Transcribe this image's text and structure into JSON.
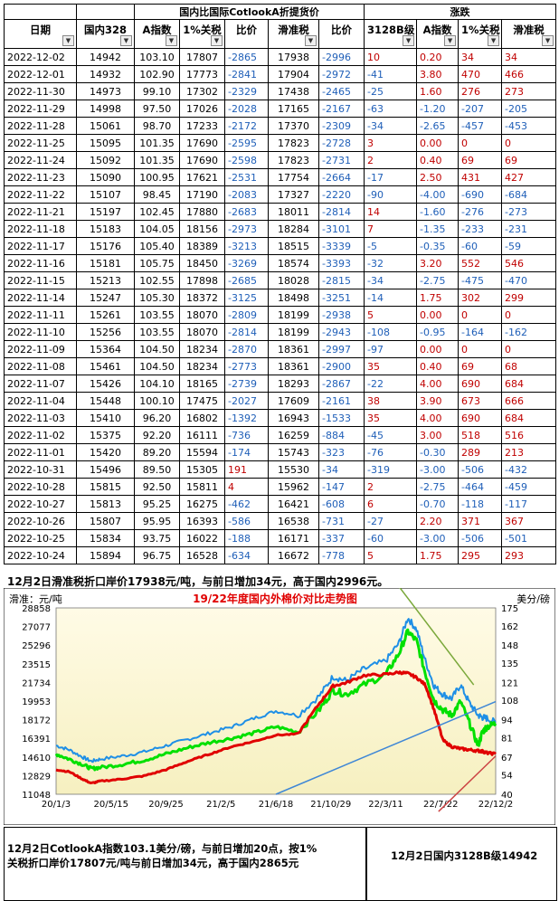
{
  "table": {
    "group_headers": {
      "domestic_vs_intl": "国内比国际CotlookA折提货价",
      "change": "涨跌"
    },
    "columns": [
      "日期",
      "国内328",
      "A指数",
      "1%关税",
      "比价",
      "滑准税",
      "比价",
      "3128B级",
      "A指数",
      "1%关税",
      "滑准税"
    ],
    "rows": [
      [
        "2022-12-02",
        "14942",
        "103.10",
        "17807",
        "-2865",
        "17938",
        "-2996",
        "10",
        "0.20",
        "34",
        "34"
      ],
      [
        "2022-12-01",
        "14932",
        "102.90",
        "17773",
        "-2841",
        "17904",
        "-2972",
        "-41",
        "3.80",
        "470",
        "466"
      ],
      [
        "2022-11-30",
        "14973",
        "99.10",
        "17302",
        "-2329",
        "17438",
        "-2465",
        "-25",
        "1.60",
        "276",
        "273"
      ],
      [
        "2022-11-29",
        "14998",
        "97.50",
        "17026",
        "-2028",
        "17165",
        "-2167",
        "-63",
        "-1.20",
        "-207",
        "-205"
      ],
      [
        "2022-11-28",
        "15061",
        "98.70",
        "17233",
        "-2172",
        "17370",
        "-2309",
        "-34",
        "-2.65",
        "-457",
        "-453"
      ],
      [
        "2022-11-25",
        "15095",
        "101.35",
        "17690",
        "-2595",
        "17823",
        "-2728",
        "3",
        "0.00",
        "0",
        "0"
      ],
      [
        "2022-11-24",
        "15092",
        "101.35",
        "17690",
        "-2598",
        "17823",
        "-2731",
        "2",
        "0.40",
        "69",
        "69"
      ],
      [
        "2022-11-23",
        "15090",
        "100.95",
        "17621",
        "-2531",
        "17754",
        "-2664",
        "-17",
        "2.50",
        "431",
        "427"
      ],
      [
        "2022-11-22",
        "15107",
        "98.45",
        "17190",
        "-2083",
        "17327",
        "-2220",
        "-90",
        "-4.00",
        "-690",
        "-684"
      ],
      [
        "2022-11-21",
        "15197",
        "102.45",
        "17880",
        "-2683",
        "18011",
        "-2814",
        "14",
        "-1.60",
        "-276",
        "-273"
      ],
      [
        "2022-11-18",
        "15183",
        "104.05",
        "18156",
        "-2973",
        "18284",
        "-3101",
        "7",
        "-1.35",
        "-233",
        "-231"
      ],
      [
        "2022-11-17",
        "15176",
        "105.40",
        "18389",
        "-3213",
        "18515",
        "-3339",
        "-5",
        "-0.35",
        "-60",
        "-59"
      ],
      [
        "2022-11-16",
        "15181",
        "105.75",
        "18450",
        "-3269",
        "18574",
        "-3393",
        "-32",
        "3.20",
        "552",
        "546"
      ],
      [
        "2022-11-15",
        "15213",
        "102.55",
        "17898",
        "-2685",
        "18028",
        "-2815",
        "-34",
        "-2.75",
        "-475",
        "-470"
      ],
      [
        "2022-11-14",
        "15247",
        "105.30",
        "18372",
        "-3125",
        "18498",
        "-3251",
        "-14",
        "1.75",
        "302",
        "299"
      ],
      [
        "2022-11-11",
        "15261",
        "103.55",
        "18070",
        "-2809",
        "18199",
        "-2938",
        "5",
        "0.00",
        "0",
        "0"
      ],
      [
        "2022-11-10",
        "15256",
        "103.55",
        "18070",
        "-2814",
        "18199",
        "-2943",
        "-108",
        "-0.95",
        "-164",
        "-162"
      ],
      [
        "2022-11-09",
        "15364",
        "104.50",
        "18234",
        "-2870",
        "18361",
        "-2997",
        "-97",
        "0.00",
        "0",
        "0"
      ],
      [
        "2022-11-08",
        "15461",
        "104.50",
        "18234",
        "-2773",
        "18361",
        "-2900",
        "35",
        "0.40",
        "69",
        "68"
      ],
      [
        "2022-11-07",
        "15426",
        "104.10",
        "18165",
        "-2739",
        "18293",
        "-2867",
        "-22",
        "4.00",
        "690",
        "684"
      ],
      [
        "2022-11-04",
        "15448",
        "100.10",
        "17475",
        "-2027",
        "17609",
        "-2161",
        "38",
        "3.90",
        "673",
        "666"
      ],
      [
        "2022-11-03",
        "15410",
        "96.20",
        "16802",
        "-1392",
        "16943",
        "-1533",
        "35",
        "4.00",
        "690",
        "684"
      ],
      [
        "2022-11-02",
        "15375",
        "92.20",
        "16111",
        "-736",
        "16259",
        "-884",
        "-45",
        "3.00",
        "518",
        "516"
      ],
      [
        "2022-11-01",
        "15420",
        "89.20",
        "15594",
        "-174",
        "15743",
        "-323",
        "-76",
        "-0.30",
        "289",
        "213"
      ],
      [
        "2022-10-31",
        "15496",
        "89.50",
        "15305",
        "191",
        "15530",
        "-34",
        "-319",
        "-3.00",
        "-506",
        "-432"
      ],
      [
        "2022-10-28",
        "15815",
        "92.50",
        "15811",
        "4",
        "15962",
        "-147",
        "2",
        "-2.75",
        "-464",
        "-459"
      ],
      [
        "2022-10-27",
        "15813",
        "95.25",
        "16275",
        "-462",
        "16421",
        "-608",
        "6",
        "-0.70",
        "-118",
        "-117"
      ],
      [
        "2022-10-26",
        "15807",
        "95.95",
        "16393",
        "-586",
        "16538",
        "-731",
        "-27",
        "2.20",
        "371",
        "367"
      ],
      [
        "2022-10-25",
        "15834",
        "93.75",
        "16022",
        "-188",
        "16171",
        "-337",
        "-60",
        "-3.00",
        "-506",
        "-501"
      ],
      [
        "2022-10-24",
        "15894",
        "96.75",
        "16528",
        "-634",
        "16672",
        "-778",
        "5",
        "1.75",
        "295",
        "293"
      ]
    ]
  },
  "notes": {
    "top": "12月2日滑准税折口岸价17938元/吨，与前日增加34元，高于国内2996元。",
    "bottom_left": "12月2日CotlookA指数103.1美分/磅，与前日增加20点，按1%关税折口岸价17807元/吨与前日增加34元，高于国内2865元",
    "bottom_right": "12月2日国内3128B级14942"
  },
  "chart_data": {
    "type": "line",
    "title": "19/22年度国内外棉价对比走势图",
    "ylabel_left": "滑准：元/吨",
    "ylabel_right": "美分/磅",
    "x_ticks": [
      "20/1/3",
      "20/5/15",
      "20/9/25",
      "21/2/5",
      "21/6/18",
      "21/10/29",
      "22/3/11",
      "22/7/22",
      "22/12/2"
    ],
    "y_left_ticks": [
      11048,
      12829,
      14610,
      16391,
      18172,
      19953,
      21734,
      23515,
      25296,
      27077,
      28858
    ],
    "y_right_ticks": [
      40,
      54,
      67,
      81,
      94,
      108,
      121,
      135,
      148,
      162,
      175
    ],
    "ylim_left": [
      11048,
      28858
    ],
    "ylim_right": [
      40,
      175
    ],
    "series": [
      {
        "color": "#1e8fe6",
        "axis": "left",
        "x": [
          0,
          0.03,
          0.06,
          0.08,
          0.1,
          0.15,
          0.2,
          0.25,
          0.3,
          0.35,
          0.4,
          0.45,
          0.5,
          0.55,
          0.6,
          0.63,
          0.66,
          0.7,
          0.75,
          0.78,
          0.8,
          0.82,
          0.84,
          0.86,
          0.88,
          0.9,
          0.92,
          0.94,
          0.96,
          0.97,
          0.98,
          1
        ],
        "y": [
          15700,
          15300,
          14600,
          14200,
          14400,
          14700,
          15100,
          15700,
          16300,
          16900,
          17500,
          18300,
          19000,
          18600,
          20500,
          22300,
          21900,
          23000,
          23800,
          25500,
          27900,
          26800,
          23800,
          21400,
          20600,
          20200,
          21500,
          19800,
          18600,
          18400,
          18300,
          17900
        ]
      },
      {
        "color": "#00e000",
        "axis": "left",
        "x": [
          0,
          0.03,
          0.06,
          0.08,
          0.1,
          0.15,
          0.2,
          0.25,
          0.3,
          0.35,
          0.4,
          0.45,
          0.5,
          0.55,
          0.6,
          0.63,
          0.66,
          0.7,
          0.75,
          0.78,
          0.8,
          0.82,
          0.84,
          0.86,
          0.88,
          0.9,
          0.92,
          0.94,
          0.96,
          0.97,
          0.98,
          1
        ],
        "y": [
          14900,
          14400,
          13900,
          13500,
          13600,
          13900,
          14300,
          14900,
          15500,
          16000,
          16400,
          16900,
          17500,
          17000,
          19200,
          21000,
          20600,
          21500,
          22500,
          24500,
          26600,
          25700,
          22600,
          20000,
          19100,
          18600,
          19900,
          17900,
          15700,
          17000,
          17500,
          17800
        ]
      },
      {
        "color": "#e00000",
        "axis": "left",
        "x": [
          0,
          0.03,
          0.06,
          0.08,
          0.1,
          0.15,
          0.2,
          0.25,
          0.3,
          0.35,
          0.4,
          0.45,
          0.5,
          0.55,
          0.6,
          0.63,
          0.66,
          0.7,
          0.75,
          0.78,
          0.8,
          0.82,
          0.84,
          0.86,
          0.88,
          0.9,
          0.92,
          0.94,
          0.96,
          0.97,
          0.98,
          1
        ],
        "y": [
          13400,
          13200,
          12500,
          12100,
          12300,
          12500,
          12800,
          13400,
          14200,
          14900,
          15600,
          16100,
          16700,
          16800,
          19800,
          21400,
          21700,
          22400,
          22500,
          22700,
          22600,
          22200,
          21500,
          19100,
          16200,
          15600,
          15400,
          15300,
          15200,
          15150,
          15000,
          14900
        ]
      }
    ],
    "lines": [
      {
        "color": "#3f87d6",
        "points": [
          [
            0.5,
            11048
          ],
          [
            1,
            19900
          ]
        ]
      },
      {
        "color": "#7aa83a",
        "points": [
          [
            0.78,
            30900
          ],
          [
            0.95,
            21500
          ]
        ]
      },
      {
        "color": "#c44",
        "points": [
          [
            0.87,
            9400
          ],
          [
            1,
            14700
          ]
        ]
      }
    ]
  }
}
